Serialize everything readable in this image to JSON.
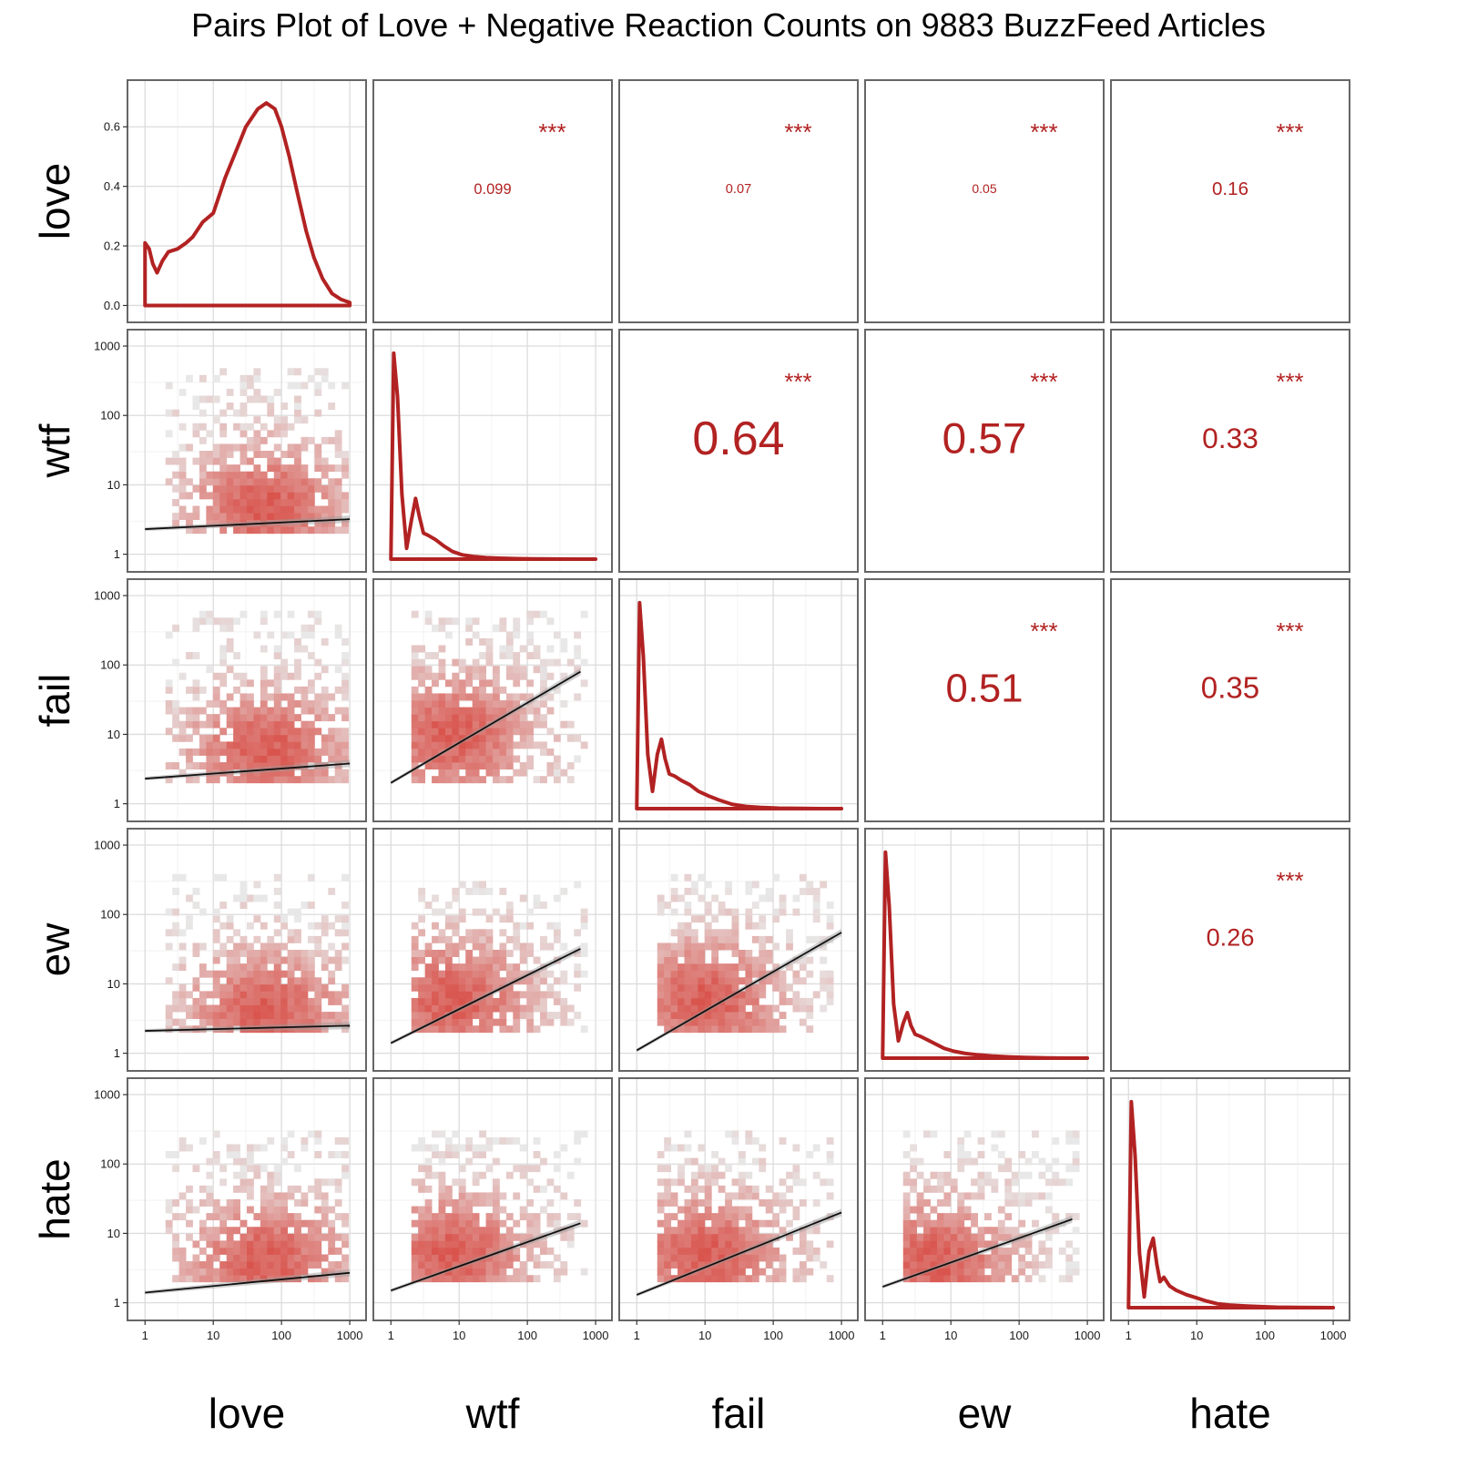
{
  "chart_data": {
    "type": "pairs",
    "title": "Pairs Plot of Love + Negative Reaction Counts on 9883 BuzzFeed Articles",
    "variables": [
      "love",
      "wtf",
      "fail",
      "ew",
      "hate"
    ],
    "log_axis_ticks": [
      1,
      10,
      100,
      1000
    ],
    "log_axis_tick_labels": [
      "1",
      "10",
      "100",
      "1000"
    ],
    "log_axis_range": [
      0.8,
      1200
    ],
    "density_y_ticks": [
      0.0,
      0.2,
      0.4,
      0.6
    ],
    "density_y_tick_labels": [
      "0.0",
      "0.2",
      "0.4",
      "0.6"
    ],
    "density_y_range": [
      -0.02,
      0.72
    ],
    "colors": {
      "accent": "#b22222",
      "fit_line": "#111111",
      "confidence_band": "#9a9a9a",
      "bin_low": "#e8e8e8",
      "bin_high": "#d9544d"
    },
    "correlations": [
      {
        "row": "love",
        "col": "wtf",
        "value": "0.099",
        "stars": "***"
      },
      {
        "row": "love",
        "col": "fail",
        "value": "0.07",
        "stars": "***"
      },
      {
        "row": "love",
        "col": "ew",
        "value": "0.05",
        "stars": "***"
      },
      {
        "row": "love",
        "col": "hate",
        "value": "0.16",
        "stars": "***"
      },
      {
        "row": "wtf",
        "col": "fail",
        "value": "0.64",
        "stars": "***"
      },
      {
        "row": "wtf",
        "col": "ew",
        "value": "0.57",
        "stars": "***"
      },
      {
        "row": "wtf",
        "col": "hate",
        "value": "0.33",
        "stars": "***"
      },
      {
        "row": "fail",
        "col": "ew",
        "value": "0.51",
        "stars": "***"
      },
      {
        "row": "fail",
        "col": "hate",
        "value": "0.35",
        "stars": "***"
      },
      {
        "row": "ew",
        "col": "hate",
        "value": "0.26",
        "stars": "***"
      }
    ],
    "diagonal_densities": [
      {
        "variable": "love",
        "x": [
          1,
          1.15,
          1.3,
          1.5,
          1.8,
          2.2,
          3,
          4,
          5,
          7,
          10,
          15,
          20,
          30,
          45,
          60,
          80,
          100,
          130,
          170,
          230,
          300,
          400,
          550,
          750,
          1000
        ],
        "y": [
          0.21,
          0.19,
          0.14,
          0.11,
          0.15,
          0.18,
          0.19,
          0.21,
          0.23,
          0.28,
          0.31,
          0.43,
          0.5,
          0.6,
          0.66,
          0.68,
          0.66,
          0.6,
          0.5,
          0.38,
          0.25,
          0.16,
          0.09,
          0.04,
          0.02,
          0.01
        ]
      },
      {
        "variable": "wtf",
        "x": [
          1,
          1.1,
          1.25,
          1.45,
          1.7,
          2,
          2.3,
          2.6,
          3,
          3.5,
          4.5,
          6,
          8,
          11,
          16,
          25,
          40,
          70,
          120,
          250,
          500,
          1000
        ],
        "y": [
          0.0,
          0.95,
          0.75,
          0.3,
          0.05,
          0.18,
          0.28,
          0.2,
          0.12,
          0.11,
          0.09,
          0.06,
          0.035,
          0.02,
          0.012,
          0.007,
          0.004,
          0.002,
          0.001,
          0.0005,
          0.0,
          0.0
        ]
      },
      {
        "variable": "fail",
        "x": [
          1,
          1.1,
          1.25,
          1.45,
          1.7,
          2,
          2.3,
          2.6,
          3,
          3.6,
          4.5,
          6,
          8,
          11,
          16,
          25,
          40,
          70,
          120,
          250,
          500,
          1000
        ],
        "y": [
          0.0,
          0.95,
          0.7,
          0.25,
          0.08,
          0.25,
          0.32,
          0.23,
          0.16,
          0.15,
          0.13,
          0.11,
          0.08,
          0.06,
          0.04,
          0.02,
          0.01,
          0.005,
          0.002,
          0.001,
          0.0,
          0.0
        ]
      },
      {
        "variable": "ew",
        "x": [
          1,
          1.1,
          1.25,
          1.45,
          1.7,
          2,
          2.3,
          2.6,
          3,
          3.6,
          4.5,
          6,
          8,
          11,
          16,
          25,
          40,
          70,
          120,
          250,
          500,
          1000
        ],
        "y": [
          0.0,
          0.95,
          0.7,
          0.25,
          0.08,
          0.16,
          0.21,
          0.15,
          0.11,
          0.1,
          0.085,
          0.065,
          0.045,
          0.032,
          0.022,
          0.015,
          0.01,
          0.006,
          0.003,
          0.001,
          0.0,
          0.0
        ]
      },
      {
        "variable": "hate",
        "x": [
          1,
          1.1,
          1.25,
          1.45,
          1.7,
          2,
          2.3,
          2.6,
          2.9,
          3.3,
          4,
          5,
          7,
          10,
          14,
          20,
          30,
          50,
          80,
          150,
          300,
          1000
        ],
        "y": [
          0.0,
          0.95,
          0.7,
          0.25,
          0.05,
          0.26,
          0.32,
          0.2,
          0.12,
          0.14,
          0.1,
          0.08,
          0.06,
          0.045,
          0.03,
          0.018,
          0.012,
          0.008,
          0.005,
          0.002,
          0.001,
          0.0
        ]
      }
    ],
    "fit_lines": [
      {
        "x": "love",
        "y": "wtf",
        "x_range": [
          1,
          1000
        ],
        "y_range": [
          2.3,
          3.2
        ]
      },
      {
        "x": "love",
        "y": "fail",
        "x_range": [
          1,
          1000
        ],
        "y_range": [
          2.3,
          3.8
        ]
      },
      {
        "x": "love",
        "y": "ew",
        "x_range": [
          1,
          1000
        ],
        "y_range": [
          2.1,
          2.5
        ]
      },
      {
        "x": "love",
        "y": "hate",
        "x_range": [
          1,
          1000
        ],
        "y_range": [
          1.4,
          2.7
        ]
      },
      {
        "x": "wtf",
        "y": "fail",
        "x_range": [
          1,
          600
        ],
        "y_range": [
          2.0,
          80
        ]
      },
      {
        "x": "wtf",
        "y": "ew",
        "x_range": [
          1,
          600
        ],
        "y_range": [
          1.4,
          32
        ]
      },
      {
        "x": "wtf",
        "y": "hate",
        "x_range": [
          1,
          600
        ],
        "y_range": [
          1.5,
          14
        ]
      },
      {
        "x": "fail",
        "y": "ew",
        "x_range": [
          1,
          1000
        ],
        "y_range": [
          1.1,
          55
        ]
      },
      {
        "x": "fail",
        "y": "hate",
        "x_range": [
          1,
          1000
        ],
        "y_range": [
          1.3,
          20
        ]
      },
      {
        "x": "ew",
        "y": "hate",
        "x_range": [
          1,
          600
        ],
        "y_range": [
          1.7,
          16
        ]
      }
    ],
    "scatter_bins": [
      {
        "x": "love",
        "y": "wtf",
        "x_extent": [
          2,
          1000
        ],
        "y_extent": [
          2,
          500
        ],
        "x_center": 60,
        "y_center": 5
      },
      {
        "x": "love",
        "y": "fail",
        "x_extent": [
          2,
          1000
        ],
        "y_extent": [
          2,
          600
        ],
        "x_center": 60,
        "y_center": 6
      },
      {
        "x": "love",
        "y": "ew",
        "x_extent": [
          2,
          1000
        ],
        "y_extent": [
          2,
          400
        ],
        "x_center": 60,
        "y_center": 4
      },
      {
        "x": "love",
        "y": "hate",
        "x_extent": [
          2,
          1000
        ],
        "y_extent": [
          2,
          300
        ],
        "x_center": 60,
        "y_center": 4
      },
      {
        "x": "wtf",
        "y": "fail",
        "x_extent": [
          2,
          800
        ],
        "y_extent": [
          2,
          600
        ],
        "x_center": 8,
        "y_center": 10
      },
      {
        "x": "wtf",
        "y": "ew",
        "x_extent": [
          2,
          800
        ],
        "y_extent": [
          2,
          300
        ],
        "x_center": 8,
        "y_center": 6
      },
      {
        "x": "wtf",
        "y": "hate",
        "x_extent": [
          2,
          800
        ],
        "y_extent": [
          2,
          300
        ],
        "x_center": 8,
        "y_center": 5
      },
      {
        "x": "fail",
        "y": "ew",
        "x_extent": [
          2,
          800
        ],
        "y_extent": [
          2,
          400
        ],
        "x_center": 10,
        "y_center": 6
      },
      {
        "x": "fail",
        "y": "hate",
        "x_extent": [
          2,
          800
        ],
        "y_extent": [
          2,
          300
        ],
        "x_center": 10,
        "y_center": 5
      },
      {
        "x": "ew",
        "y": "hate",
        "x_extent": [
          2,
          800
        ],
        "y_extent": [
          2,
          300
        ],
        "x_center": 6,
        "y_center": 4
      }
    ],
    "grid": true,
    "legend": "none"
  }
}
